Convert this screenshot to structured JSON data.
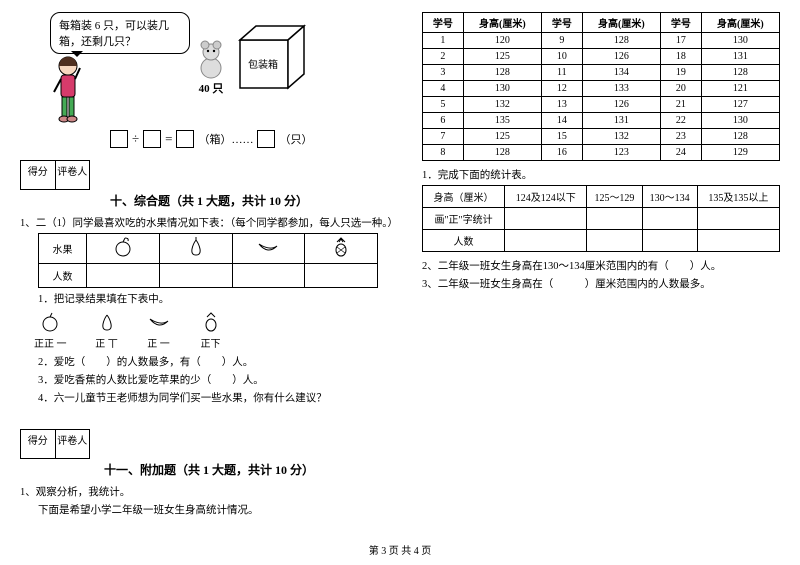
{
  "left": {
    "bubble": "每箱装 6 只，可以装几箱，还剩几只？",
    "count_label": "40 只",
    "box_label": "包装箱",
    "eq_unit1": "（箱）……",
    "eq_unit2": "（只）",
    "score_l": "得分",
    "score_r": "评卷人",
    "section10_title": "十、综合题（共 1 大题，共计 10 分）",
    "q1_intro": "1、二（1）同学最喜欢吃的水果情况如下表：（每个同学都参加，每人只选一种。）",
    "fruit_header": "水果",
    "people_header": "人数",
    "sub1": "1．把记录结果填在下表中。",
    "tally": [
      "正正 一",
      "正 丅",
      "正 一",
      "正下"
    ],
    "sub2": "2．爱吃（　　）的人数最多，有（　　）人。",
    "sub3": "3．爱吃香蕉的人数比爱吃苹果的少（　　）人。",
    "sub4": "4．六一儿童节王老师想为同学们买一些水果，你有什么建议？",
    "section11_title": "十一、附加题（共 1 大题，共计 10 分）",
    "q11_1": "1、观察分析，我统计。",
    "q11_2": "下面是希望小学二年级一班女生身高统计情况。"
  },
  "right": {
    "header": [
      "学号",
      "身高(厘米)",
      "学号",
      "身高(厘米)",
      "学号",
      "身高(厘米)"
    ],
    "rows": [
      [
        "1",
        "120",
        "9",
        "128",
        "17",
        "130"
      ],
      [
        "2",
        "125",
        "10",
        "126",
        "18",
        "131"
      ],
      [
        "3",
        "128",
        "11",
        "134",
        "19",
        "128"
      ],
      [
        "4",
        "130",
        "12",
        "133",
        "20",
        "121"
      ],
      [
        "5",
        "132",
        "13",
        "126",
        "21",
        "127"
      ],
      [
        "6",
        "135",
        "14",
        "131",
        "22",
        "130"
      ],
      [
        "7",
        "125",
        "15",
        "132",
        "23",
        "128"
      ],
      [
        "8",
        "128",
        "16",
        "123",
        "24",
        "129"
      ]
    ],
    "stats_intro": "1．完成下面的统计表。",
    "stats_header": [
      "身高（厘米）",
      "124及124以下",
      "125～129",
      "130～134",
      "135及135以上"
    ],
    "stats_row1": "画\"正\"字统计",
    "stats_row2": "人数",
    "q2": "2、二年级一班女生身高在130～134厘米范围内的有（　　）人。",
    "q3": "3、二年级一班女生身高在（　　　）厘米范围内的人数最多。"
  },
  "footer": "第 3 页  共 4 页"
}
